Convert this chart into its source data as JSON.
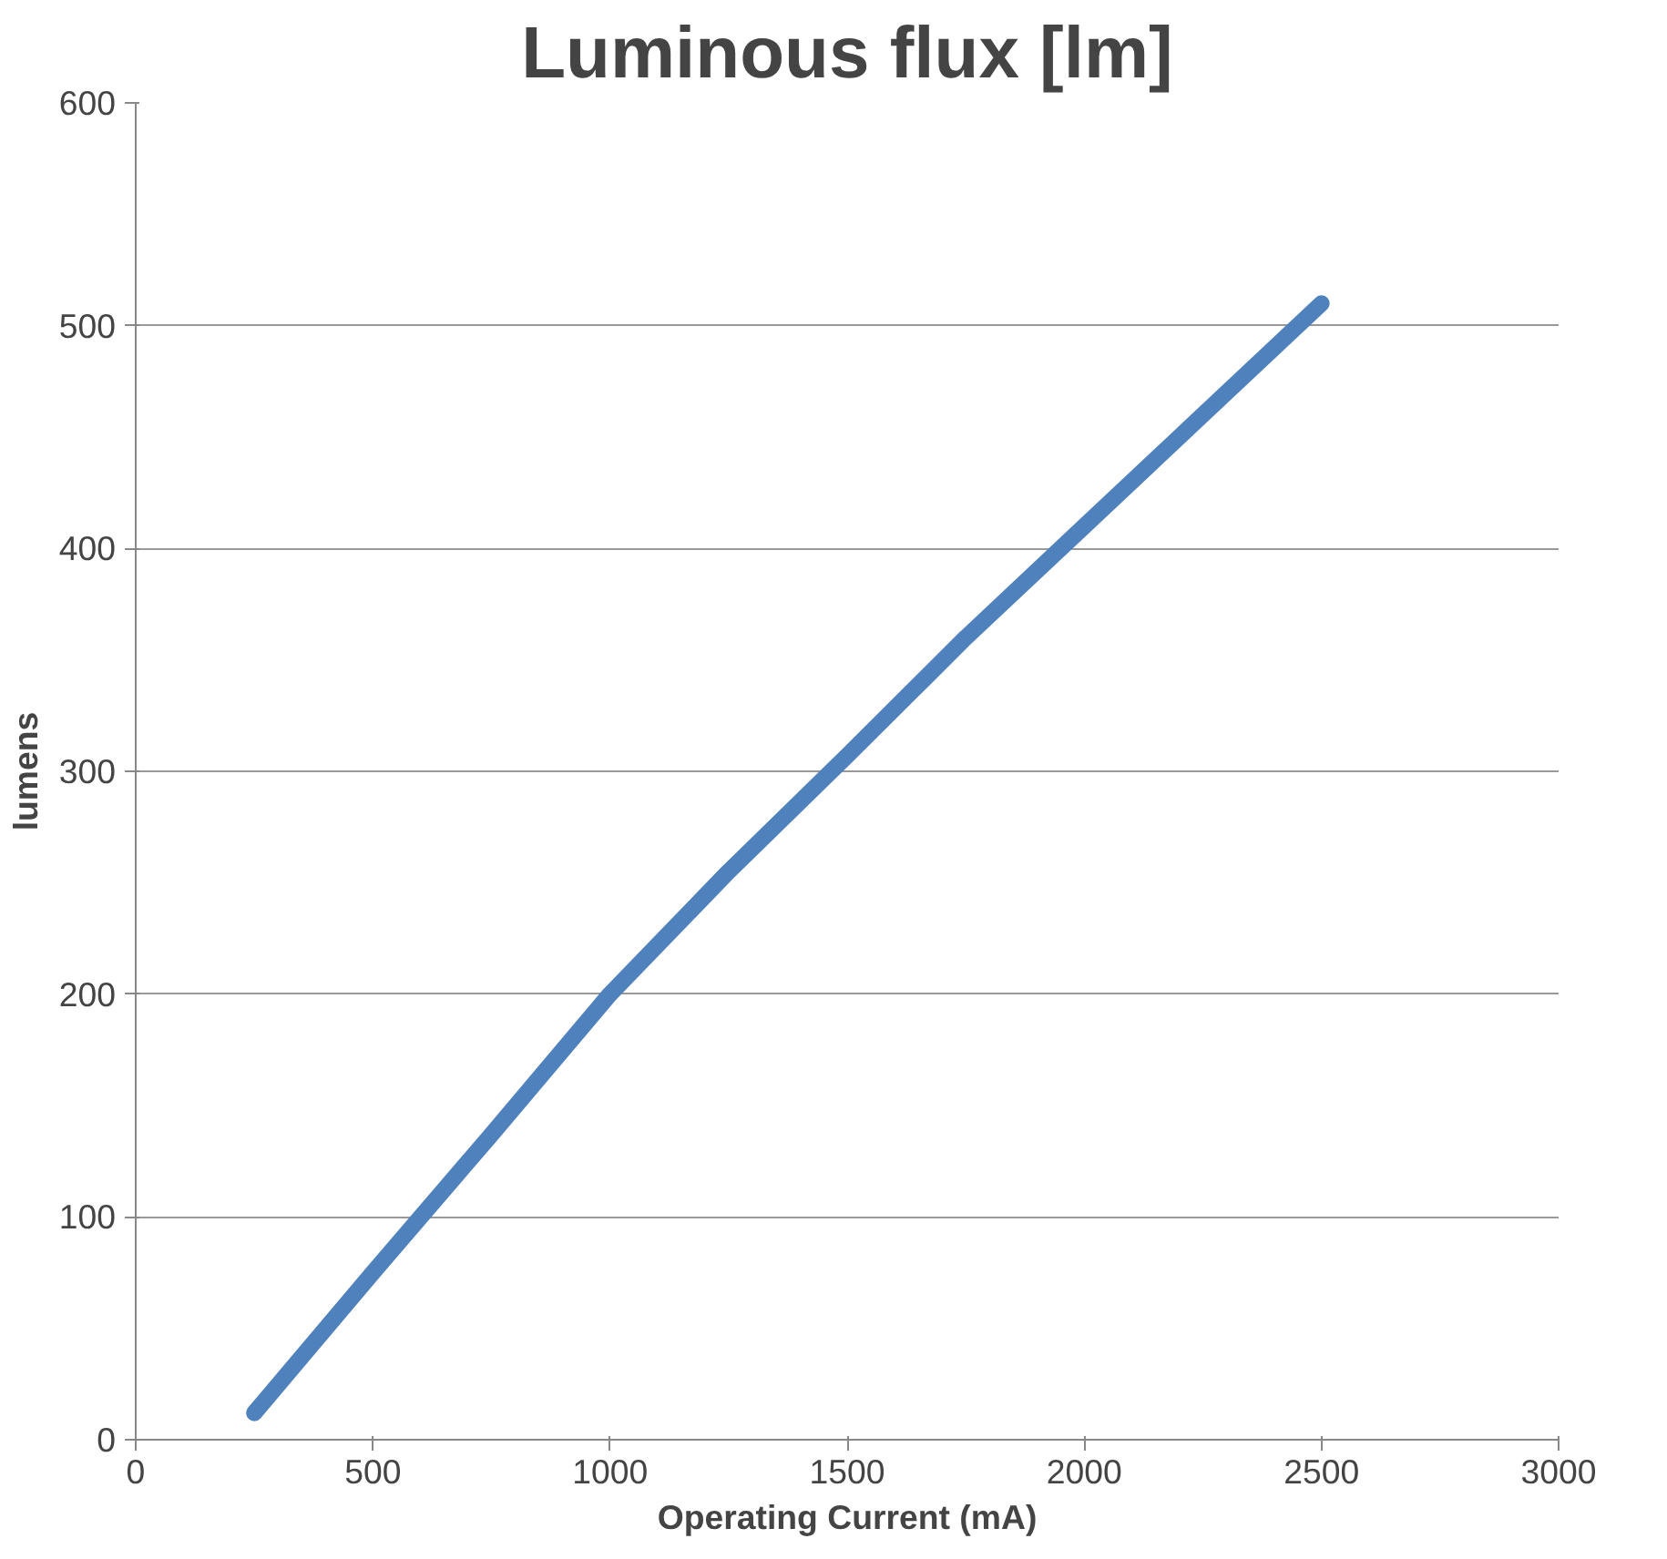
{
  "chart_data": {
    "type": "line",
    "title": "Luminous flux [lm]",
    "xlabel": "Operating Current (mA)",
    "ylabel": "lumens",
    "x": [
      250,
      500,
      750,
      1000,
      1250,
      1500,
      1750,
      2000,
      2250,
      2500
    ],
    "series": [
      {
        "color": "#4f81bd",
        "values": [
          12,
          75,
          137,
          200,
          255,
          307,
          360,
          410,
          460,
          510
        ]
      }
    ],
    "xlim": [
      0,
      3000
    ],
    "xticks": [
      0,
      500,
      1000,
      1500,
      2000,
      2500,
      3000
    ],
    "ylim": [
      0,
      600
    ],
    "yticks": [
      0,
      100,
      200,
      300,
      400,
      500,
      600
    ],
    "grid": "y",
    "marker": "none",
    "line_style": "solid"
  }
}
